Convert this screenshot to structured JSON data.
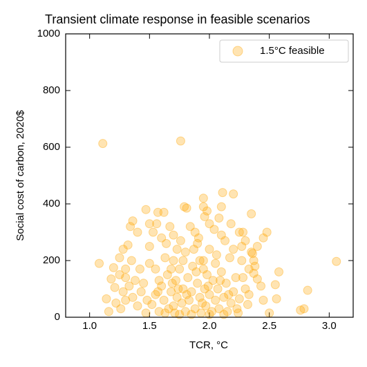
{
  "chart_data": {
    "type": "scatter",
    "title": "Transient climate response in feasible scenarios",
    "xlabel": "TCR, °C",
    "ylabel": "Social cost of carbon, 2020$",
    "xlim": [
      0.8,
      3.2
    ],
    "ylim": [
      0,
      1000
    ],
    "xticks": [
      {
        "value": 1,
        "label": "1.0"
      },
      {
        "value": 1.5,
        "label": "1.5"
      },
      {
        "value": 2,
        "label": "2.0"
      },
      {
        "value": 2.5,
        "label": "2.5"
      },
      {
        "value": 3,
        "label": "3.0"
      }
    ],
    "yticks": [
      0,
      200,
      400,
      600,
      800,
      1000
    ],
    "legend": "upper right",
    "series": [
      {
        "name": "1.5°C feasible",
        "color": "#ffa500",
        "x": [
          1.11,
          1.76,
          3.06,
          2.82,
          2.79,
          2.76,
          2.5,
          1.14,
          1.08,
          1.16,
          2.58,
          2.55,
          2.56,
          2.48,
          2.45,
          2.35,
          2.38,
          2.4,
          2.37,
          2.36,
          2.37,
          2.25,
          2.2,
          2.11,
          2.1,
          1.95,
          1.95,
          1.98,
          1.96,
          1.79,
          1.81,
          1.57,
          1.62,
          1.47,
          1.36,
          1.34,
          1.4,
          1.5,
          1.2,
          1.18,
          1.21,
          1.25,
          1.3,
          1.32,
          1.28,
          1.22,
          1.26,
          1.52,
          1.55,
          1.58,
          1.6,
          1.62,
          1.65,
          1.66,
          1.68,
          1.7,
          1.7,
          1.72,
          1.73,
          1.75,
          1.75,
          1.77,
          1.78,
          1.8,
          1.8,
          1.82,
          1.83,
          1.85,
          1.86,
          1.88,
          1.9,
          1.9,
          1.92,
          1.93,
          1.95,
          1.96,
          1.97,
          1.98,
          2.0,
          2.0,
          2.02,
          2.03,
          2.05,
          2.05,
          2.07,
          2.08,
          2.1,
          2.1,
          2.12,
          2.14,
          2.15,
          2.17,
          2.18,
          2.2,
          2.22,
          2.23,
          2.25,
          2.27,
          2.3,
          2.32,
          2.33,
          2.28,
          2.24,
          1.45,
          1.48,
          1.5,
          1.47,
          1.43,
          1.42,
          1.4,
          1.38,
          1.36,
          1.35,
          1.33,
          1.3,
          1.3,
          1.28,
          1.25,
          1.5,
          1.53,
          1.56,
          1.6,
          1.64,
          1.67,
          1.7,
          1.73,
          1.76,
          1.84,
          1.88,
          1.91,
          2.0,
          2.04,
          2.08,
          2.13,
          2.18,
          2.2,
          2.27,
          2.3,
          2.35,
          2.4,
          2.43,
          2.45,
          2.33,
          2.28,
          1.55,
          1.63,
          1.78,
          1.87,
          1.95,
          2.06,
          1.58,
          1.69,
          1.81,
          1.94,
          2.16,
          1.63,
          1.71,
          1.85,
          2.0,
          2.12,
          1.57,
          1.74,
          1.89,
          1.99,
          2.09,
          1.92,
          1.68
        ],
        "values": [
          613,
          622,
          197,
          95,
          30,
          25,
          15,
          65,
          190,
          20,
          160,
          115,
          65,
          300,
          280,
          365,
          180,
          135,
          155,
          225,
          200,
          300,
          435,
          440,
          390,
          420,
          390,
          375,
          355,
          390,
          385,
          370,
          370,
          380,
          340,
          320,
          300,
          330,
          175,
          135,
          105,
          150,
          140,
          255,
          240,
          50,
          30,
          45,
          80,
          20,
          110,
          60,
          150,
          30,
          90,
          200,
          40,
          130,
          70,
          10,
          170,
          50,
          100,
          230,
          20,
          140,
          60,
          90,
          180,
          30,
          120,
          260,
          70,
          15,
          200,
          100,
          40,
          150,
          80,
          240,
          20,
          130,
          60,
          190,
          100,
          30,
          160,
          290,
          70,
          120,
          20,
          210,
          50,
          90,
          140,
          30,
          65,
          250,
          100,
          45,
          170,
          300,
          15,
          120,
          60,
          190,
          15,
          90,
          170,
          40,
          130,
          70,
          200,
          110,
          60,
          170,
          90,
          210,
          250,
          300,
          330,
          280,
          260,
          320,
          290,
          240,
          270,
          320,
          300,
          280,
          330,
          310,
          350,
          270,
          330,
          240,
          200,
          270,
          230,
          250,
          110,
          60,
          80,
          140,
          170,
          210,
          200,
          240,
          170,
          220,
          130,
          120,
          80,
          50,
          80,
          15,
          15,
          10,
          10,
          10,
          90,
          100,
          160,
          110,
          130,
          200,
          170
        ]
      }
    ]
  }
}
